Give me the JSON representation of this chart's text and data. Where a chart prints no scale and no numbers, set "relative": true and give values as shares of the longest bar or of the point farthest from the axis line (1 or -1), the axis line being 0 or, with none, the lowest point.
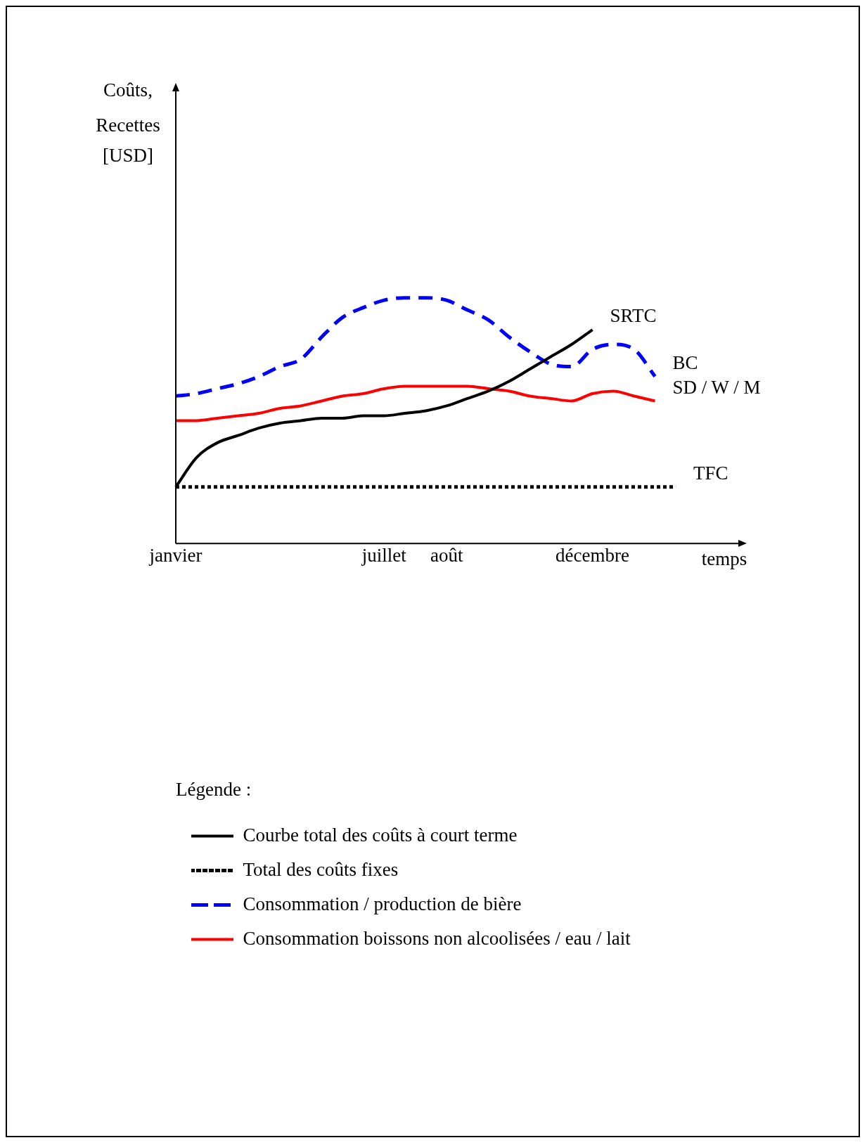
{
  "chart_data": {
    "type": "line",
    "relative": true,
    "xlabel": "temps",
    "legend_title": "Légende :",
    "legend": "bottom",
    "grid": false,
    "marker": "none",
    "categories": [
      "janvier",
      null,
      null,
      null,
      null,
      null,
      null,
      null,
      null,
      null,
      "juillet",
      null,
      null,
      "août",
      null,
      null,
      null,
      null,
      null,
      null,
      "décembre",
      null,
      null,
      null,
      null,
      null,
      null,
      null
    ],
    "series": [
      {
        "name": "Courbe total des coûts à court terme",
        "color": "#000000",
        "line_style": "solid",
        "values": [
          0.23,
          0.35,
          0.41,
          0.44,
          0.47,
          0.49,
          0.5,
          0.51,
          0.51,
          0.52,
          0.52,
          0.53,
          0.54,
          0.56,
          0.59,
          0.62,
          0.66,
          0.71,
          0.76,
          0.81,
          0.87,
          null,
          null,
          null,
          null,
          null,
          null,
          null
        ]
      },
      {
        "name": "Total des coûts fixes",
        "color": "#000000",
        "line_style": "dotted",
        "values": [
          0.23,
          0.23,
          0.23,
          0.23,
          0.23,
          0.23,
          0.23,
          0.23,
          0.23,
          0.23,
          0.23,
          0.23,
          0.23,
          0.23,
          0.23,
          0.23,
          0.23,
          0.23,
          0.23,
          0.23,
          0.23,
          0.23,
          0.23,
          0.23,
          0.23,
          null,
          null,
          null
        ]
      },
      {
        "name": "Consommation / production de bière",
        "color": "#0000ff",
        "line_style": "dashed",
        "values": [
          0.6,
          0.61,
          0.63,
          0.65,
          0.68,
          0.72,
          0.75,
          0.84,
          0.92,
          0.96,
          0.99,
          1.0,
          1.0,
          0.99,
          0.95,
          0.91,
          0.84,
          0.78,
          0.73,
          0.72,
          0.79,
          0.81,
          0.79,
          0.68,
          null,
          null,
          null,
          null
        ]
      },
      {
        "name": "Consommation boissons non alcoolisées / eau / lait",
        "color": "#ff0000",
        "line_style": "solid",
        "values": [
          0.5,
          0.5,
          0.51,
          0.52,
          0.53,
          0.55,
          0.56,
          0.58,
          0.6,
          0.61,
          0.63,
          0.64,
          0.64,
          0.64,
          0.64,
          0.63,
          0.62,
          0.6,
          0.59,
          0.58,
          0.61,
          0.62,
          0.6,
          0.58,
          null,
          null,
          null,
          null
        ]
      }
    ],
    "annotations": [
      "SRTC",
      "TFC",
      "BC",
      "SD / W / M",
      "Coûts, Recettes [USD]"
    ]
  }
}
